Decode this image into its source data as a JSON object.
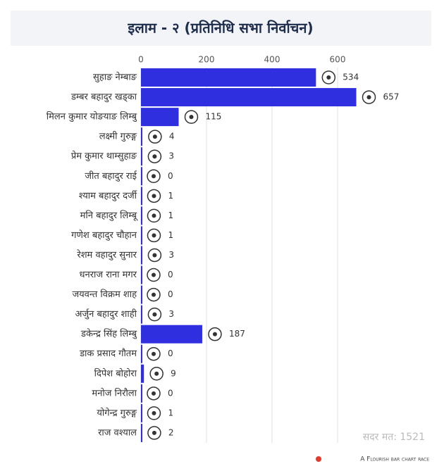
{
  "chart_data": {
    "type": "bar",
    "orientation": "horizontal",
    "title": "इलाम - २ (प्रतिनिधि सभा निर्वाचन)",
    "categories": [
      "सुहाङ नेम्बाङ",
      "डम्बर बहादुर खड्का",
      "मिलन कुमार योङयाङ लिम्बु",
      "लक्ष्मी गुरुङ्ग",
      "प्रेम कुमार थाम्सुहाङ",
      "जीत बहादुर राई",
      "श्याम बहादुर दर्जी",
      "मनि बहादुर लिम्बू",
      "गणेश बहादुर चौहान",
      "रेशम वहादुर सुनार",
      "धनराज राना मगर",
      "जयवन्त विक्रम शाह",
      "अर्जुन बहादुर शाही",
      "डकेन्द्र सिंह लिम्बु",
      "डाक प्रसाद गौतम",
      "दिपेश बोहोरा",
      "मनोज निरौला",
      "योगेन्द्र गुरुङ्ग",
      "राज वश्याल"
    ],
    "values": [
      534,
      657,
      115,
      4,
      3,
      0,
      1,
      1,
      1,
      3,
      0,
      0,
      3,
      187,
      0,
      9,
      0,
      1,
      2
    ],
    "color": "#2f2fe0",
    "xlim": [
      0,
      700
    ],
    "xticks": [
      0,
      200,
      400,
      600
    ],
    "grid": true,
    "footer": "सदर मत: 1521",
    "credit": "A Flourish bar chart race"
  }
}
